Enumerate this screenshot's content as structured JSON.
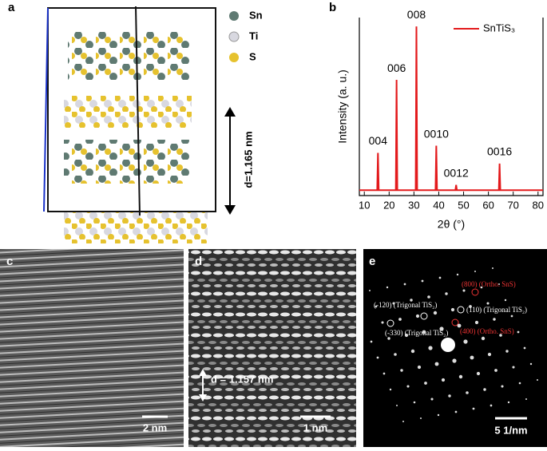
{
  "panel_labels": [
    "a",
    "b",
    "c",
    "d",
    "e"
  ],
  "panel_a": {
    "legend": [
      "Sn",
      "Ti",
      "S"
    ],
    "spacing": "d=1.165 nm"
  },
  "chart_data": {
    "type": "line",
    "xlabel": "2θ (°)",
    "ylabel": "Intensity (a. u.)",
    "xlim": [
      8,
      82
    ],
    "ylim": [
      0,
      100
    ],
    "xticks": [
      10,
      20,
      30,
      40,
      50,
      60,
      70,
      80
    ],
    "legend": "upper right",
    "series": [
      {
        "name": "SnTiS₃",
        "color": "#e31a1c",
        "x": [
          8,
          15.2,
          15.5,
          15.8,
          22.7,
          23,
          23.3,
          30.7,
          31,
          31.3,
          38.7,
          39,
          39.3,
          46.7,
          47,
          47.3,
          64.2,
          64.5,
          64.8,
          82
        ],
        "values": [
          3,
          3,
          24,
          3,
          3,
          65,
          3,
          3,
          95,
          3,
          3,
          28,
          3,
          3,
          6,
          3,
          3,
          18,
          3,
          3
        ]
      }
    ],
    "annotations": [
      {
        "text": "004",
        "x": 15.5
      },
      {
        "text": "006",
        "x": 23
      },
      {
        "text": "008",
        "x": 31
      },
      {
        "text": "0010",
        "x": 39
      },
      {
        "text": "0012",
        "x": 47
      },
      {
        "text": "0016",
        "x": 64.5
      }
    ]
  },
  "panel_c": {
    "scale": "2 nm"
  },
  "panel_d": {
    "spacing": "d = 1.157 nm",
    "scale": "1 nm"
  },
  "panel_e": {
    "spots": [
      "(800) (Ortho. SnS)",
      "(110) (Trigonal TiS₂)",
      "(-120) (Trigonal TiS₂)",
      "(-330) (Trigonal TiS₂)",
      "(400) (Ortho. SnS)"
    ],
    "scale": "5 1/nm"
  }
}
